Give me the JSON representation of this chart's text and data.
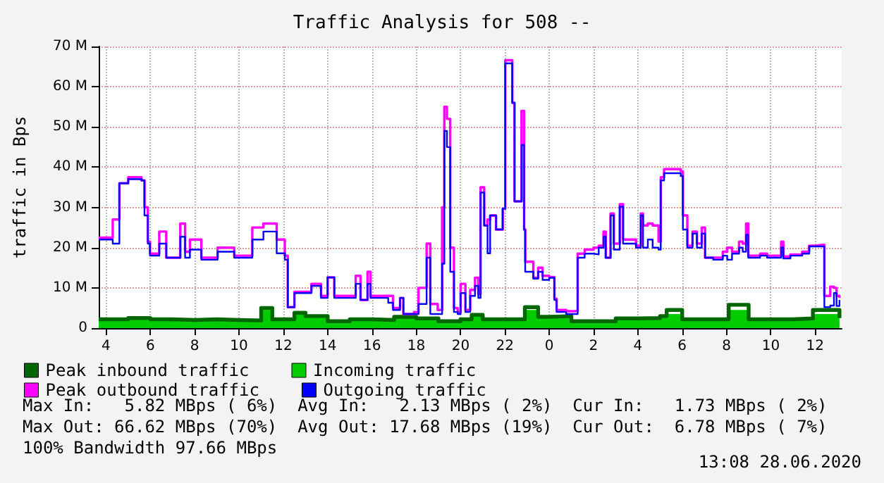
{
  "chart_data": {
    "type": "step",
    "title": "Traffic Analysis for 508 --",
    "ylabel": "traffic in Bps",
    "xlim": [
      "2020-06-27T03:40",
      "2020-06-28T13:12"
    ],
    "ylim": [
      0,
      70
    ],
    "xticks": [
      {
        "value": "2020-06-27T04:00",
        "label": "4"
      },
      {
        "value": "2020-06-27T06:00",
        "label": "6"
      },
      {
        "value": "2020-06-27T08:00",
        "label": "8"
      },
      {
        "value": "2020-06-27T10:00",
        "label": "10"
      },
      {
        "value": "2020-06-27T12:00",
        "label": "12"
      },
      {
        "value": "2020-06-27T14:00",
        "label": "14"
      },
      {
        "value": "2020-06-27T16:00",
        "label": "16"
      },
      {
        "value": "2020-06-27T18:00",
        "label": "18"
      },
      {
        "value": "2020-06-27T20:00",
        "label": "20"
      },
      {
        "value": "2020-06-27T22:00",
        "label": "22"
      },
      {
        "value": "2020-06-28T00:00",
        "label": "0"
      },
      {
        "value": "2020-06-28T02:00",
        "label": "2"
      },
      {
        "value": "2020-06-28T04:00",
        "label": "4"
      },
      {
        "value": "2020-06-28T06:00",
        "label": "6"
      },
      {
        "value": "2020-06-28T08:00",
        "label": "8"
      },
      {
        "value": "2020-06-28T10:00",
        "label": "10"
      },
      {
        "value": "2020-06-28T12:00",
        "label": "12"
      }
    ],
    "yticks": [
      0,
      {
        "value": 10,
        "label": "10 M"
      },
      {
        "value": 20,
        "label": "20 M"
      },
      {
        "value": 30,
        "label": "30 M"
      },
      {
        "value": 40,
        "label": "40 M"
      },
      {
        "value": 50,
        "label": "50 M"
      },
      {
        "value": 60,
        "label": "60 M"
      },
      {
        "value": 70,
        "label": "70 M"
      }
    ],
    "grid": true,
    "legend": "bottom left",
    "x": [
      "2020-06-27T03:40",
      "2020-06-27T04:18",
      "2020-06-27T04:36",
      "2020-06-27T05:00",
      "2020-06-27T05:36",
      "2020-06-27T05:44",
      "2020-06-27T05:53",
      "2020-06-27T05:59",
      "2020-06-27T06:24",
      "2020-06-27T06:43",
      "2020-06-27T07:21",
      "2020-06-27T07:34",
      "2020-06-27T07:47",
      "2020-06-27T08:18",
      "2020-06-27T09:02",
      "2020-06-27T09:47",
      "2020-06-27T10:36",
      "2020-06-27T11:06",
      "2020-06-27T11:42",
      "2020-06-27T12:04",
      "2020-06-27T12:12",
      "2020-06-27T12:30",
      "2020-06-27T13:16",
      "2020-06-27T13:42",
      "2020-06-27T14:00",
      "2020-06-27T14:18",
      "2020-06-27T15:16",
      "2020-06-27T15:29",
      "2020-06-27T15:48",
      "2020-06-27T15:56",
      "2020-06-27T16:44",
      "2020-06-27T16:57",
      "2020-06-27T17:16",
      "2020-06-27T17:25",
      "2020-06-27T17:54",
      "2020-06-27T18:06",
      "2020-06-27T18:28",
      "2020-06-27T18:38",
      "2020-06-27T18:58",
      "2020-06-27T19:10",
      "2020-06-27T19:16",
      "2020-06-27T19:23",
      "2020-06-27T19:32",
      "2020-06-27T19:42",
      "2020-06-27T19:52",
      "2020-06-27T20:00",
      "2020-06-27T20:13",
      "2020-06-27T20:26",
      "2020-06-27T20:39",
      "2020-06-27T20:48",
      "2020-06-27T20:54",
      "2020-06-27T21:04",
      "2020-06-27T21:13",
      "2020-06-27T21:20",
      "2020-06-27T21:36",
      "2020-06-27T21:54",
      "2020-06-27T22:01",
      "2020-06-27T22:11",
      "2020-06-27T22:20",
      "2020-06-27T22:26",
      "2020-06-27T22:39",
      "2020-06-27T22:45",
      "2020-06-27T22:52",
      "2020-06-27T22:55",
      "2020-06-27T23:17",
      "2020-06-27T23:30",
      "2020-06-27T23:42",
      "2020-06-28T00:00",
      "2020-06-28T00:14",
      "2020-06-28T00:20",
      "2020-06-28T00:46",
      "2020-06-28T01:11",
      "2020-06-28T01:17",
      "2020-06-28T01:36",
      "2020-06-28T02:00",
      "2020-06-28T02:14",
      "2020-06-28T02:27",
      "2020-06-28T02:33",
      "2020-06-28T02:46",
      "2020-06-28T02:55",
      "2020-06-28T03:11",
      "2020-06-28T03:20",
      "2020-06-28T03:55",
      "2020-06-28T04:08",
      "2020-06-28T04:14",
      "2020-06-28T04:27",
      "2020-06-28T04:40",
      "2020-06-28T04:56",
      "2020-06-28T05:02",
      "2020-06-28T05:11",
      "2020-06-28T05:56",
      "2020-06-28T06:02",
      "2020-06-28T06:14",
      "2020-06-28T06:28",
      "2020-06-28T06:40",
      "2020-06-28T06:53",
      "2020-06-28T07:02",
      "2020-06-28T07:24",
      "2020-06-28T07:50",
      "2020-06-28T08:02",
      "2020-06-28T08:15",
      "2020-06-28T08:34",
      "2020-06-28T08:44",
      "2020-06-28T08:53",
      "2020-06-28T08:59",
      "2020-06-28T09:18",
      "2020-06-28T09:31",
      "2020-06-28T09:50",
      "2020-06-28T10:09",
      "2020-06-28T10:28",
      "2020-06-28T10:34",
      "2020-06-28T10:53",
      "2020-06-28T11:25",
      "2020-06-28T11:44",
      "2020-06-28T12:03",
      "2020-06-28T12:19",
      "2020-06-28T12:25",
      "2020-06-28T12:41",
      "2020-06-28T12:51",
      "2020-06-28T12:58",
      "2020-06-28T13:06"
    ],
    "series": [
      {
        "name": "Peak inbound traffic",
        "color": "#006600",
        "x": [
          "2020-06-27T03:40",
          "2020-06-27T05:00",
          "2020-06-27T06:00",
          "2020-06-27T07:00",
          "2020-06-27T08:00",
          "2020-06-27T09:00",
          "2020-06-27T10:00",
          "2020-06-27T11:00",
          "2020-06-27T11:30",
          "2020-06-27T12:30",
          "2020-06-27T13:00",
          "2020-06-27T14:00",
          "2020-06-27T15:00",
          "2020-06-27T16:00",
          "2020-06-27T17:00",
          "2020-06-27T18:00",
          "2020-06-27T19:00",
          "2020-06-27T20:00",
          "2020-06-27T20:30",
          "2020-06-27T21:00",
          "2020-06-27T22:00",
          "2020-06-27T22:54",
          "2020-06-27T23:30",
          "2020-06-28T00:00",
          "2020-06-28T01:00",
          "2020-06-28T02:00",
          "2020-06-28T03:00",
          "2020-06-28T04:00",
          "2020-06-28T05:00",
          "2020-06-28T05:18",
          "2020-06-28T06:00",
          "2020-06-28T07:00",
          "2020-06-28T08:06",
          "2020-06-28T09:00",
          "2020-06-28T10:00",
          "2020-06-28T11:00",
          "2020-06-28T11:54",
          "2020-06-28T13:06"
        ],
        "values": [
          2.2,
          2.5,
          2.2,
          2,
          2.2,
          2,
          1.9,
          5,
          2.2,
          3.8,
          3,
          1.7,
          2.2,
          2,
          2.8,
          2.4,
          1.7,
          2.2,
          3.3,
          2.2,
          2.2,
          5.2,
          2.8,
          3,
          1.7,
          1.7,
          2.4,
          2.5,
          3,
          4.5,
          2.2,
          2.2,
          5.8,
          2.2,
          2.2,
          2.4,
          4.5,
          2.5
        ]
      },
      {
        "name": "Incoming traffic",
        "type": "area",
        "color": "#00cc00",
        "x": [
          "2020-06-27T03:40",
          "2020-06-27T05:00",
          "2020-06-27T06:00",
          "2020-06-27T07:00",
          "2020-06-27T08:00",
          "2020-06-27T09:00",
          "2020-06-27T10:00",
          "2020-06-27T11:00",
          "2020-06-27T11:30",
          "2020-06-27T12:30",
          "2020-06-27T13:00",
          "2020-06-27T14:00",
          "2020-06-27T15:00",
          "2020-06-27T16:00",
          "2020-06-27T17:00",
          "2020-06-27T18:00",
          "2020-06-27T19:00",
          "2020-06-27T20:00",
          "2020-06-27T20:30",
          "2020-06-27T21:00",
          "2020-06-27T22:00",
          "2020-06-27T22:54",
          "2020-06-27T23:30",
          "2020-06-28T00:00",
          "2020-06-28T01:00",
          "2020-06-28T02:00",
          "2020-06-28T03:00",
          "2020-06-28T04:00",
          "2020-06-28T05:00",
          "2020-06-28T05:18",
          "2020-06-28T06:00",
          "2020-06-28T07:00",
          "2020-06-28T08:06",
          "2020-06-28T09:00",
          "2020-06-28T10:00",
          "2020-06-28T11:00",
          "2020-06-28T11:54",
          "2020-06-28T13:06"
        ],
        "values": [
          2,
          2.3,
          2,
          1.8,
          2,
          1.8,
          1.7,
          4.5,
          2,
          3.5,
          2.7,
          1.5,
          2,
          1.8,
          2.5,
          2.2,
          1.5,
          2,
          3,
          2,
          2,
          4.5,
          2.5,
          2.8,
          1.5,
          1.5,
          2.2,
          2.3,
          2.7,
          3.5,
          2,
          2,
          4.5,
          2,
          2,
          2.2,
          3.5,
          2.3
        ]
      },
      {
        "name": "Peak outbound traffic",
        "color": "#ff00ff",
        "values": [
          22.5,
          27,
          36,
          37.5,
          36.7,
          30,
          21.5,
          18.5,
          24,
          17.5,
          26,
          19,
          22,
          17.5,
          20,
          18,
          25,
          26,
          22,
          18,
          5.2,
          9,
          11,
          8,
          12.6,
          8,
          13,
          7,
          14,
          8,
          8,
          5,
          7.5,
          3.5,
          4,
          10,
          21,
          6,
          4.5,
          30,
          55,
          52,
          20,
          5,
          4,
          11,
          4.5,
          9.5,
          12.5,
          8.5,
          35,
          25.5,
          27,
          28,
          24.5,
          29.7,
          66.6,
          66.6,
          56,
          31.5,
          31.5,
          54,
          24.5,
          16.5,
          12.5,
          15,
          13,
          12.7,
          7.3,
          4.5,
          4.2,
          4.3,
          18.5,
          19.5,
          20,
          20.5,
          24,
          17.5,
          28.5,
          21,
          30.8,
          22,
          20.5,
          28.5,
          25.5,
          26,
          25.5,
          21.5,
          37.5,
          39.5,
          39,
          28,
          20.5,
          24,
          21,
          25,
          17.5,
          17.5,
          19,
          20,
          19,
          21.5,
          21,
          26,
          18,
          18,
          18.5,
          18,
          18,
          21.5,
          17.8,
          18.3,
          19,
          20.5,
          20.7,
          20.7,
          8,
          10.3,
          10,
          8,
          7.5
        ]
      },
      {
        "name": "Outgoing traffic",
        "color": "#0000ff",
        "values": [
          22,
          21,
          36,
          37,
          36.7,
          28,
          21,
          18,
          21,
          17.5,
          22.7,
          17.5,
          19.5,
          17,
          19,
          17.5,
          22,
          24,
          18.6,
          17,
          5.2,
          8.7,
          10.5,
          7.5,
          12.6,
          7.5,
          11,
          7,
          11,
          7.5,
          6.3,
          4.5,
          7.5,
          3.5,
          3.5,
          6,
          17.5,
          3.5,
          3.5,
          16,
          49,
          45,
          14,
          4,
          3.5,
          8.7,
          4,
          8,
          10.5,
          7.5,
          33.7,
          25.5,
          18.6,
          28,
          24.5,
          29.7,
          65.8,
          65.8,
          56,
          31.5,
          31.5,
          45.5,
          24.5,
          14,
          12.3,
          14,
          12,
          12.5,
          7,
          4,
          3.5,
          3.5,
          17.5,
          18.5,
          18.3,
          20,
          22.7,
          17.5,
          28,
          19.5,
          30.2,
          21,
          20,
          28,
          20,
          22,
          20,
          19.5,
          36.7,
          38.5,
          37.8,
          24.5,
          20,
          23.5,
          20,
          23.5,
          17.5,
          17,
          18,
          17,
          18.5,
          20,
          19,
          23.2,
          17.5,
          17.5,
          18,
          17.5,
          17.5,
          20,
          17.3,
          18,
          18.5,
          20.3,
          20.3,
          20.3,
          5.2,
          5.6,
          8.7,
          5.5,
          7
        ]
      }
    ],
    "annotations": [
      "Max In:   5.82 MBps ( 6%)  Avg In:   2.13 MBps ( 2%)  Cur In:   1.73 MBps ( 2%)",
      "Max Out: 66.62 MBps (70%)  Avg Out: 17.68 MBps (19%)  Cur Out:  6.78 MBps ( 7%)",
      "100% Bandwidth 97.66 MBps",
      "13:08 28.06.2020"
    ]
  }
}
